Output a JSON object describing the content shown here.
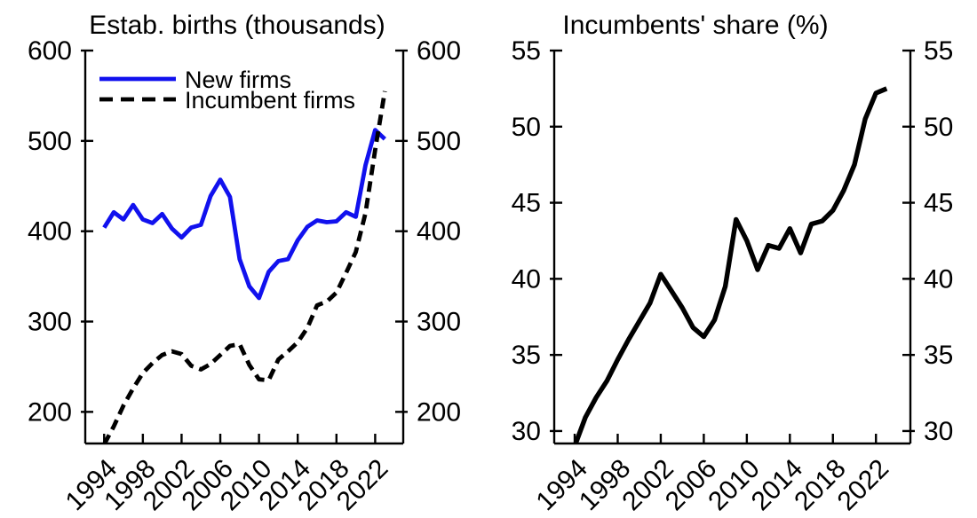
{
  "colors": {
    "background": "#ffffff",
    "line_blue": "#1111ee",
    "line_black": "#000000",
    "axis": "#000000"
  },
  "chart_data": [
    {
      "type": "line",
      "title": "Estab. births (thousands)",
      "x": [
        1994,
        1995,
        1996,
        1997,
        1998,
        1999,
        2000,
        2001,
        2002,
        2003,
        2004,
        2005,
        2006,
        2007,
        2008,
        2009,
        2010,
        2011,
        2012,
        2013,
        2014,
        2015,
        2016,
        2017,
        2018,
        2019,
        2020,
        2021,
        2022,
        2023
      ],
      "series": [
        {
          "name": "New firms",
          "style": "solid",
          "color": "#1111ee",
          "values": [
            404,
            421,
            413,
            429,
            413,
            409,
            419,
            403,
            393,
            404,
            407,
            439,
            457,
            438,
            369,
            339,
            326,
            355,
            367,
            369,
            390,
            405,
            412,
            410,
            411,
            421,
            416,
            473,
            512,
            502
          ]
        },
        {
          "name": "Incumbent firms",
          "style": "dashed",
          "color": "#000000",
          "values": [
            164,
            184,
            207,
            226,
            243,
            254,
            263,
            267,
            264,
            251,
            247,
            253,
            263,
            273,
            275,
            252,
            236,
            235,
            258,
            267,
            277,
            293,
            318,
            322,
            332,
            354,
            377,
            420,
            490,
            555
          ]
        }
      ],
      "ylim": [
        165,
        600
      ],
      "yticks": [
        200,
        300,
        400,
        500,
        600
      ],
      "xticks": [
        1994,
        1998,
        2002,
        2006,
        2010,
        2014,
        2018,
        2022
      ],
      "xlim": [
        1992.05,
        2024.9
      ],
      "legend_position": "top-left",
      "grid": false
    },
    {
      "type": "line",
      "title": "Incumbents' share (%)",
      "x": [
        1994,
        1995,
        1996,
        1997,
        1998,
        1999,
        2000,
        2001,
        2002,
        2003,
        2004,
        2005,
        2006,
        2007,
        2008,
        2009,
        2010,
        2011,
        2012,
        2013,
        2014,
        2015,
        2016,
        2017,
        2018,
        2019,
        2020,
        2021,
        2022,
        2023
      ],
      "series": [
        {
          "name": "Incumbents' share",
          "style": "solid",
          "color": "#000000",
          "values": [
            29.0,
            30.9,
            32.2,
            33.3,
            34.7,
            36.0,
            37.2,
            38.4,
            40.3,
            39.2,
            38.1,
            36.8,
            36.2,
            37.3,
            39.5,
            43.9,
            42.5,
            40.6,
            42.2,
            42.0,
            43.3,
            41.7,
            43.6,
            43.8,
            44.5,
            45.8,
            47.5,
            50.5,
            52.2,
            52.5
          ]
        }
      ],
      "ylim": [
        29.18,
        55
      ],
      "yticks": [
        30,
        35,
        40,
        45,
        50,
        55
      ],
      "xticks": [
        1994,
        1998,
        2002,
        2006,
        2010,
        2014,
        2018,
        2022
      ],
      "xlim": [
        1992.1,
        2025.2
      ],
      "legend_position": "none",
      "grid": false
    }
  ]
}
